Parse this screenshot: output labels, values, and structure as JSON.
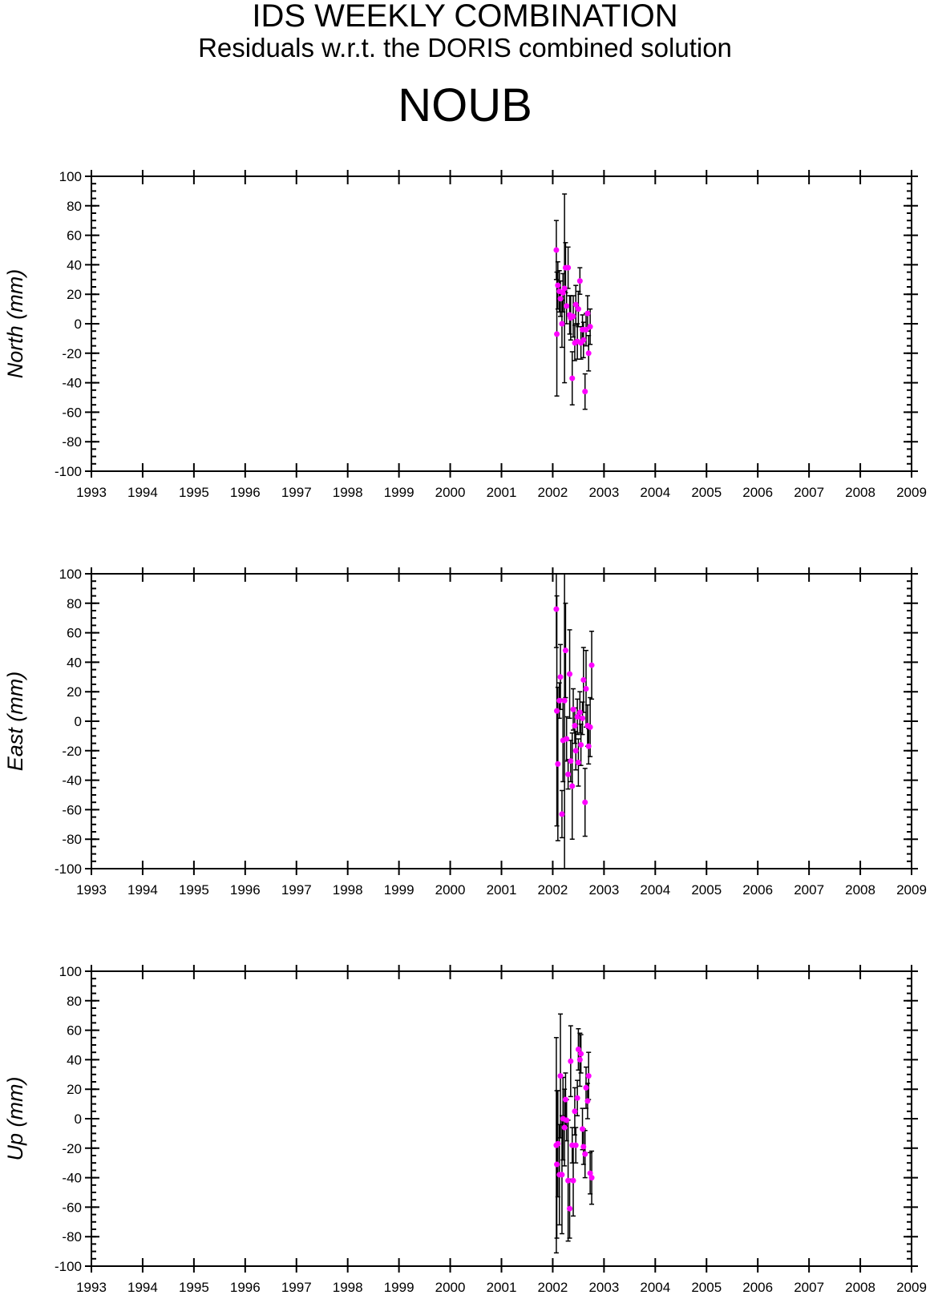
{
  "header": {
    "title": "IDS WEEKLY COMBINATION",
    "subtitle": "Residuals w.r.t. the DORIS combined solution",
    "station": "NOUB"
  },
  "colors": {
    "point": "#ff00ff",
    "errorbar": "#000000",
    "axis": "#000000"
  },
  "chart_data": [
    {
      "type": "scatter",
      "name": "north",
      "xlabel": "",
      "ylabel": "North (mm)",
      "xlim": [
        1993,
        2009
      ],
      "ylim": [
        -100,
        100
      ],
      "xticks": [
        "1993",
        "1994",
        "1995",
        "1996",
        "1997",
        "1998",
        "1999",
        "2000",
        "2001",
        "2002",
        "2003",
        "2004",
        "2005",
        "2006",
        "2007",
        "2008",
        "2009"
      ],
      "yticks": [
        "100",
        "80",
        "60",
        "40",
        "20",
        "0",
        "-20",
        "-40",
        "-60",
        "-80",
        "-100"
      ],
      "grid": false,
      "points": [
        {
          "x": 2002.07,
          "y": 50,
          "err": 20
        },
        {
          "x": 2002.08,
          "y": -7,
          "err": 42
        },
        {
          "x": 2002.1,
          "y": 26,
          "err": 16
        },
        {
          "x": 2002.13,
          "y": 22,
          "err": 14
        },
        {
          "x": 2002.15,
          "y": 17,
          "err": 12
        },
        {
          "x": 2002.18,
          "y": 0,
          "err": 16
        },
        {
          "x": 2002.2,
          "y": 21,
          "err": 13
        },
        {
          "x": 2002.23,
          "y": 24,
          "err": 64
        },
        {
          "x": 2002.25,
          "y": 38,
          "err": 17
        },
        {
          "x": 2002.27,
          "y": 12,
          "err": 12
        },
        {
          "x": 2002.3,
          "y": 38,
          "err": 14
        },
        {
          "x": 2002.33,
          "y": 6,
          "err": 13
        },
        {
          "x": 2002.35,
          "y": 4,
          "err": 15
        },
        {
          "x": 2002.38,
          "y": -37,
          "err": 18
        },
        {
          "x": 2002.4,
          "y": 5,
          "err": 14
        },
        {
          "x": 2002.43,
          "y": -13,
          "err": 12
        },
        {
          "x": 2002.45,
          "y": 13,
          "err": 13
        },
        {
          "x": 2002.48,
          "y": -12,
          "err": 12
        },
        {
          "x": 2002.5,
          "y": 10,
          "err": 12
        },
        {
          "x": 2002.53,
          "y": 29,
          "err": 9
        },
        {
          "x": 2002.55,
          "y": -13,
          "err": 11
        },
        {
          "x": 2002.58,
          "y": -4,
          "err": 10
        },
        {
          "x": 2002.6,
          "y": -11,
          "err": 12
        },
        {
          "x": 2002.63,
          "y": -46,
          "err": 12
        },
        {
          "x": 2002.65,
          "y": -4,
          "err": 11
        },
        {
          "x": 2002.68,
          "y": 7,
          "err": 12
        },
        {
          "x": 2002.7,
          "y": -20,
          "err": 12
        },
        {
          "x": 2002.73,
          "y": -2,
          "err": 12
        }
      ]
    },
    {
      "type": "scatter",
      "name": "east",
      "xlabel": "",
      "ylabel": "East (mm)",
      "xlim": [
        1993,
        2009
      ],
      "ylim": [
        -100,
        100
      ],
      "xticks": [
        "1993",
        "1994",
        "1995",
        "1996",
        "1997",
        "1998",
        "1999",
        "2000",
        "2001",
        "2002",
        "2003",
        "2004",
        "2005",
        "2006",
        "2007",
        "2008",
        "2009"
      ],
      "yticks": [
        "100",
        "80",
        "60",
        "40",
        "20",
        "0",
        "-20",
        "-40",
        "-60",
        "-80",
        "-100"
      ],
      "grid": false,
      "points": [
        {
          "x": 2002.07,
          "y": 76,
          "err": 26
        },
        {
          "x": 2002.08,
          "y": 7,
          "err": 78
        },
        {
          "x": 2002.1,
          "y": -29,
          "err": 52
        },
        {
          "x": 2002.13,
          "y": 14,
          "err": 12
        },
        {
          "x": 2002.15,
          "y": 30,
          "err": 22
        },
        {
          "x": 2002.18,
          "y": -63,
          "err": 16
        },
        {
          "x": 2002.2,
          "y": -13,
          "err": 28
        },
        {
          "x": 2002.23,
          "y": 14,
          "err": 120
        },
        {
          "x": 2002.25,
          "y": 48,
          "err": 32
        },
        {
          "x": 2002.27,
          "y": -12,
          "err": 15
        },
        {
          "x": 2002.3,
          "y": -36,
          "err": 10
        },
        {
          "x": 2002.33,
          "y": 32,
          "err": 30
        },
        {
          "x": 2002.35,
          "y": -27,
          "err": 14
        },
        {
          "x": 2002.38,
          "y": -44,
          "err": 36
        },
        {
          "x": 2002.4,
          "y": 8,
          "err": 14
        },
        {
          "x": 2002.43,
          "y": -3,
          "err": 12
        },
        {
          "x": 2002.45,
          "y": -20,
          "err": 13
        },
        {
          "x": 2002.48,
          "y": 3,
          "err": 12
        },
        {
          "x": 2002.5,
          "y": -28,
          "err": 16
        },
        {
          "x": 2002.53,
          "y": 6,
          "err": 14
        },
        {
          "x": 2002.55,
          "y": -16,
          "err": 14
        },
        {
          "x": 2002.58,
          "y": 2,
          "err": 11
        },
        {
          "x": 2002.6,
          "y": 28,
          "err": 22
        },
        {
          "x": 2002.63,
          "y": -55,
          "err": 23
        },
        {
          "x": 2002.65,
          "y": 22,
          "err": 26
        },
        {
          "x": 2002.68,
          "y": -3,
          "err": 14
        },
        {
          "x": 2002.7,
          "y": -17,
          "err": 12
        },
        {
          "x": 2002.73,
          "y": -4,
          "err": 20
        },
        {
          "x": 2002.76,
          "y": 38,
          "err": 23
        }
      ]
    },
    {
      "type": "scatter",
      "name": "up",
      "xlabel": "",
      "ylabel": "Up (mm)",
      "xlim": [
        1993,
        2009
      ],
      "ylim": [
        -100,
        100
      ],
      "xticks": [
        "1993",
        "1994",
        "1995",
        "1996",
        "1997",
        "1998",
        "1999",
        "2000",
        "2001",
        "2002",
        "2003",
        "2004",
        "2005",
        "2006",
        "2007",
        "2008",
        "2009"
      ],
      "yticks": [
        "100",
        "80",
        "60",
        "40",
        "20",
        "0",
        "-20",
        "-40",
        "-60",
        "-80",
        "-100"
      ],
      "grid": false,
      "points": [
        {
          "x": 2002.07,
          "y": -18,
          "err": 73
        },
        {
          "x": 2002.08,
          "y": -31,
          "err": 50
        },
        {
          "x": 2002.1,
          "y": -17,
          "err": 36
        },
        {
          "x": 2002.13,
          "y": -38,
          "err": 34
        },
        {
          "x": 2002.15,
          "y": 29,
          "err": 42
        },
        {
          "x": 2002.18,
          "y": -38,
          "err": 40
        },
        {
          "x": 2002.2,
          "y": 0,
          "err": 28
        },
        {
          "x": 2002.23,
          "y": -6,
          "err": 26
        },
        {
          "x": 2002.25,
          "y": 13,
          "err": 18
        },
        {
          "x": 2002.27,
          "y": -1,
          "err": 14
        },
        {
          "x": 2002.3,
          "y": -42,
          "err": 41
        },
        {
          "x": 2002.33,
          "y": -61,
          "err": 20
        },
        {
          "x": 2002.35,
          "y": 39,
          "err": 24
        },
        {
          "x": 2002.38,
          "y": -18,
          "err": 12
        },
        {
          "x": 2002.4,
          "y": -42,
          "err": 24
        },
        {
          "x": 2002.43,
          "y": 5,
          "err": 16
        },
        {
          "x": 2002.45,
          "y": -18,
          "err": 12
        },
        {
          "x": 2002.48,
          "y": 14,
          "err": 12
        },
        {
          "x": 2002.5,
          "y": 47,
          "err": 14
        },
        {
          "x": 2002.53,
          "y": 40,
          "err": 18
        },
        {
          "x": 2002.55,
          "y": 44,
          "err": 13
        },
        {
          "x": 2002.58,
          "y": -7,
          "err": 14
        },
        {
          "x": 2002.6,
          "y": -19,
          "err": 12
        },
        {
          "x": 2002.63,
          "y": -24,
          "err": 16
        },
        {
          "x": 2002.65,
          "y": 21,
          "err": 14
        },
        {
          "x": 2002.68,
          "y": 12,
          "err": 12
        },
        {
          "x": 2002.7,
          "y": 29,
          "err": 16
        },
        {
          "x": 2002.73,
          "y": -37,
          "err": 14
        },
        {
          "x": 2002.76,
          "y": -40,
          "err": 18
        }
      ]
    }
  ]
}
